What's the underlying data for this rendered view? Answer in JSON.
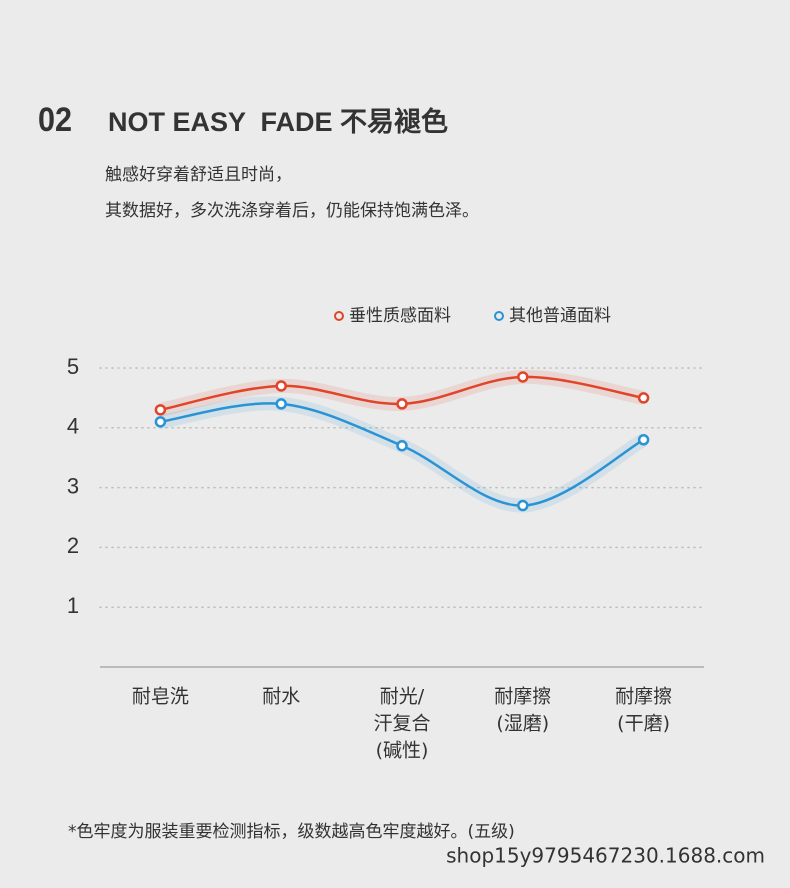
{
  "chart_data": {
    "type": "line",
    "label": "02",
    "title": "NOT EASY  FADE 不易褪色",
    "subtitle": [
      "触感好穿着舒适且时尚，",
      "其数据好，多次洗涤穿着后，仍能保持饱满色泽。"
    ],
    "categories": [
      [
        "耐皂洗"
      ],
      [
        "耐水"
      ],
      [
        "耐光/",
        "汗复合",
        "(碱性)"
      ],
      [
        "耐摩擦",
        "(湿磨)"
      ],
      [
        "耐摩擦",
        "(干磨)"
      ]
    ],
    "series": [
      {
        "name": "垂性质感面料",
        "color": "#e0452a",
        "values": [
          4.3,
          4.7,
          4.4,
          4.85,
          4.5
        ]
      },
      {
        "name": "其他普通面料",
        "color": "#2a93d5",
        "values": [
          4.1,
          4.4,
          3.7,
          2.7,
          3.8
        ]
      }
    ],
    "ylim": [
      0,
      5
    ],
    "yticks": [
      1,
      2,
      3,
      4,
      5
    ],
    "grid": true,
    "legend": "top",
    "note": "*色牢度为服装重要检测指标，级数越高色牢度越好。(五级)",
    "watermark": "shop15y9795467230.1688.com"
  }
}
